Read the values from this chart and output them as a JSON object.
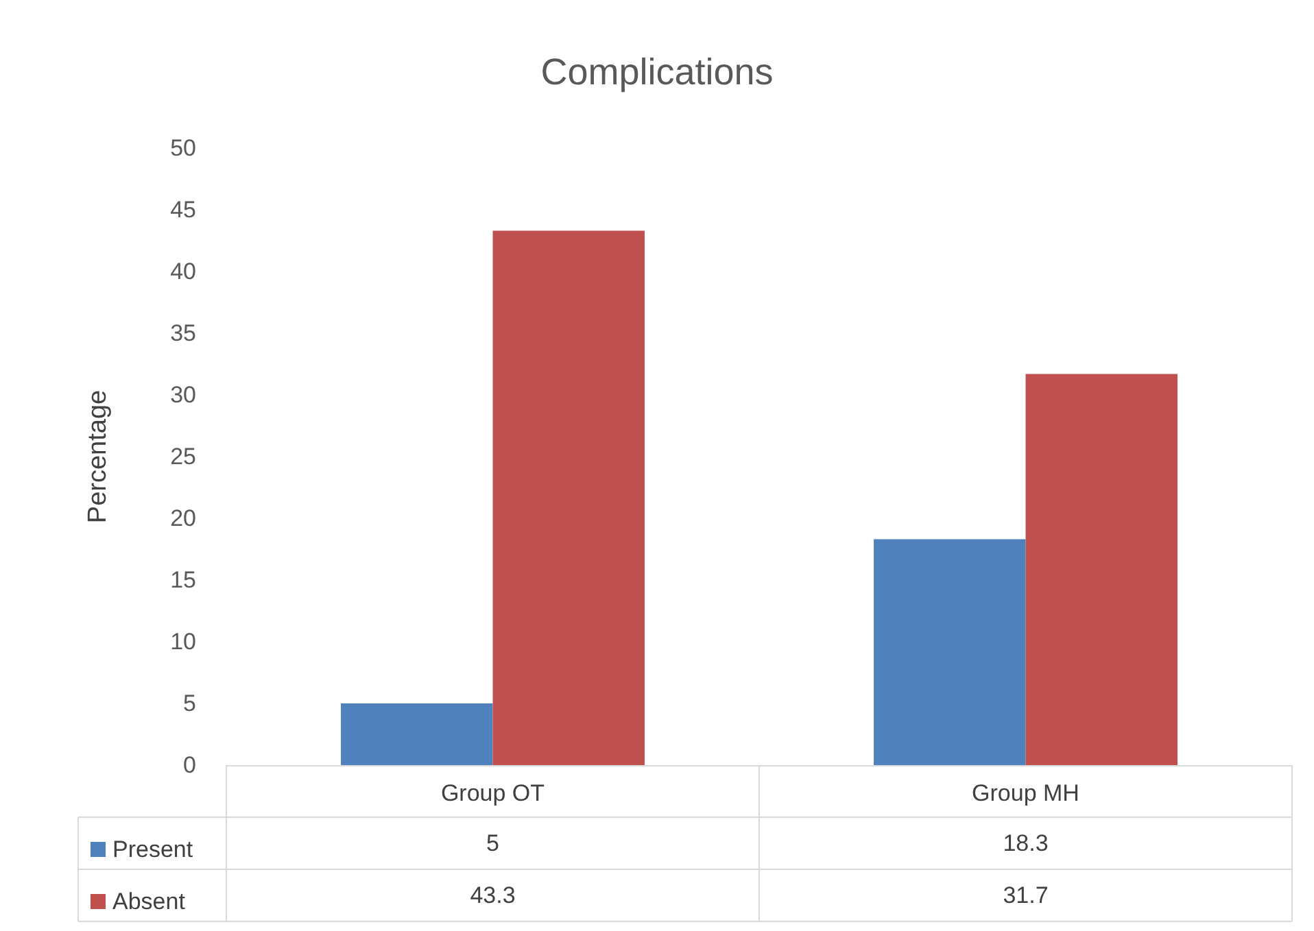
{
  "chart_data": {
    "type": "bar",
    "title": "Complications",
    "ylabel": "Percentage",
    "categories": [
      "Group OT",
      "Group MH"
    ],
    "series": [
      {
        "name": "Present",
        "color": "#4f81bd",
        "values": [
          5,
          18.3
        ]
      },
      {
        "name": "Absent",
        "color": "#c0504d",
        "values": [
          43.3,
          31.7
        ]
      }
    ],
    "ylim": [
      0,
      50
    ],
    "yticks": [
      0,
      5,
      10,
      15,
      20,
      25,
      30,
      35,
      40,
      45,
      50
    ],
    "data_labels": true,
    "legend": "bottom",
    "grid": false
  }
}
